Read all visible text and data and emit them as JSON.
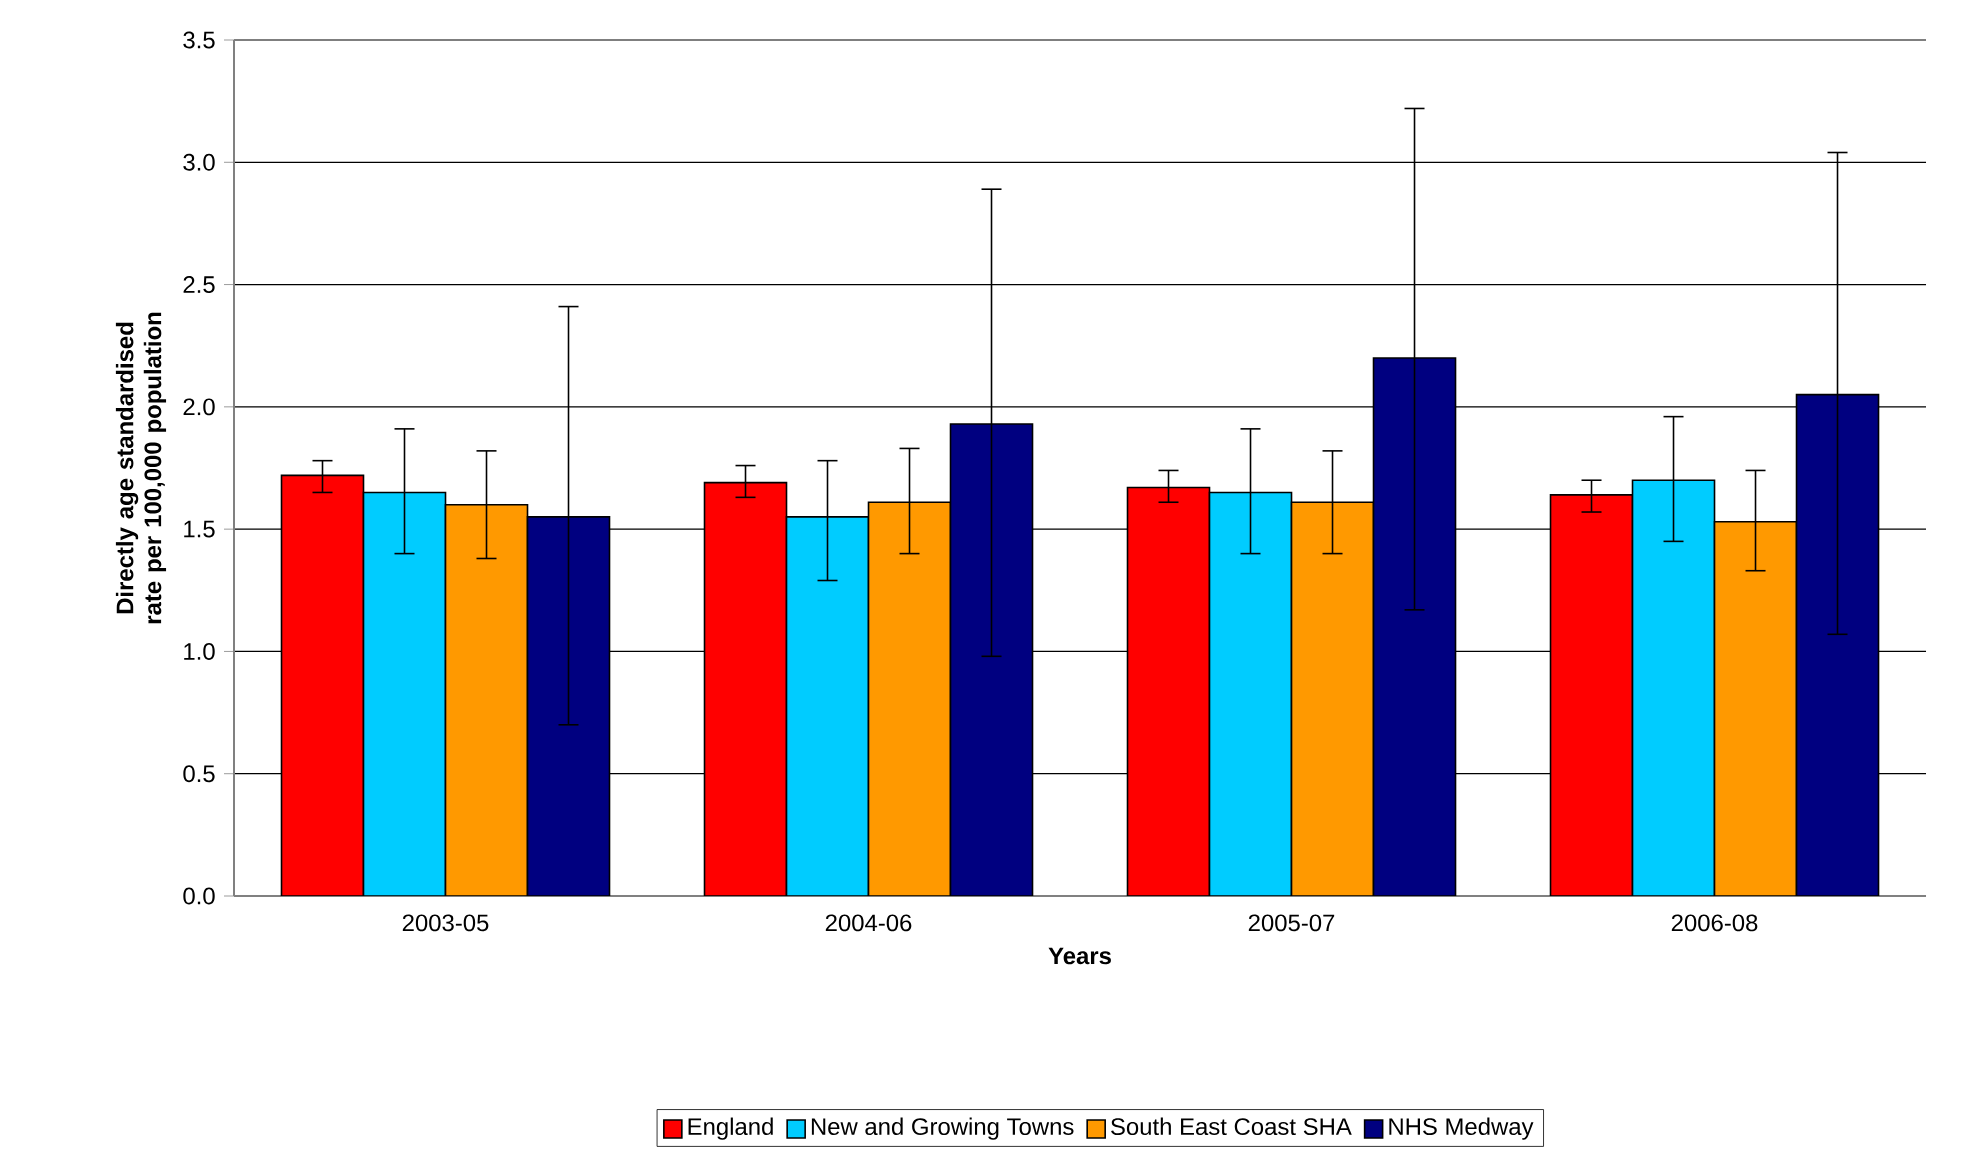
{
  "chart_data": {
    "type": "bar",
    "xlabel": "Years",
    "ylabel": "Directly age standardised rate per 100,000 population",
    "categories": [
      "2003-05",
      "2004-06",
      "2005-07",
      "2006-08"
    ],
    "series": [
      {
        "name": "England",
        "color": "#ff0000",
        "values": [
          1.72,
          1.69,
          1.67,
          1.64
        ],
        "errors": [
          [
            1.65,
            1.78
          ],
          [
            1.63,
            1.76
          ],
          [
            1.61,
            1.74
          ],
          [
            1.57,
            1.7
          ]
        ]
      },
      {
        "name": "New and Growing Towns",
        "color": "#00ccff",
        "values": [
          1.65,
          1.55,
          1.65,
          1.7
        ],
        "errors": [
          [
            1.4,
            1.91
          ],
          [
            1.29,
            1.78
          ],
          [
            1.4,
            1.91
          ],
          [
            1.45,
            1.96
          ]
        ]
      },
      {
        "name": "South East Coast SHA",
        "color": "#ff9900",
        "values": [
          1.6,
          1.61,
          1.61,
          1.53
        ],
        "errors": [
          [
            1.38,
            1.82
          ],
          [
            1.4,
            1.83
          ],
          [
            1.4,
            1.82
          ],
          [
            1.33,
            1.74
          ]
        ]
      },
      {
        "name": "NHS Medway",
        "color": "#000080",
        "values": [
          1.55,
          1.93,
          2.2,
          2.05
        ],
        "errors": [
          [
            0.7,
            2.41
          ],
          [
            0.98,
            2.89
          ],
          [
            1.17,
            3.22
          ],
          [
            1.07,
            3.04
          ]
        ]
      }
    ],
    "ylim": [
      0,
      3.5
    ],
    "yticks": [
      {
        "value": 0,
        "label": "0.0"
      },
      {
        "value": 0.5,
        "label": "0.5"
      },
      {
        "value": 1,
        "label": "1.0"
      },
      {
        "value": 1.5,
        "label": "1.5"
      },
      {
        "value": 2,
        "label": "2.0"
      },
      {
        "value": 2.5,
        "label": "2.5"
      },
      {
        "value": 3,
        "label": "3.0"
      },
      {
        "value": 3.5,
        "label": "3.5"
      }
    ],
    "grid": "y",
    "legend": "bottom"
  }
}
